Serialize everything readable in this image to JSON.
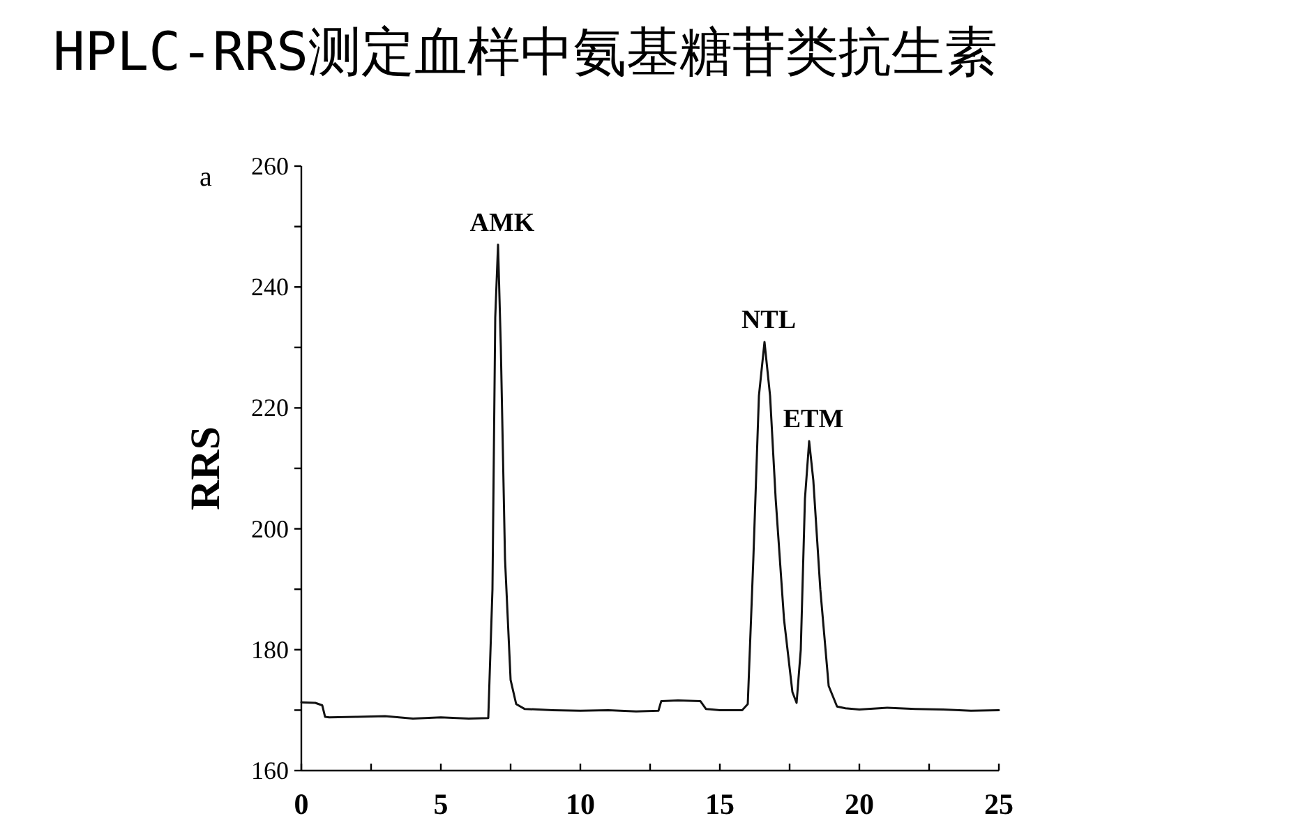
{
  "chart_data": {
    "type": "line",
    "title": "HPLC-RRS测定血样中氨基糖苷类抗生素",
    "ylabel": "RRS",
    "annotations": [
      "a",
      {
        "text": "AMK",
        "x": 7.05,
        "y": 247
      },
      {
        "text": "NTL",
        "x": 16.6,
        "y": 230.9
      },
      {
        "text": "ETM",
        "x": 18.2,
        "y": 214.5
      }
    ],
    "series": [
      {
        "color": "#111111",
        "x": [
          0,
          0.5,
          0.75,
          0.85,
          1.0,
          2.0,
          3.0,
          4.0,
          5.0,
          6.0,
          6.7,
          6.85,
          6.95,
          7.05,
          7.15,
          7.3,
          7.5,
          7.7,
          8.0,
          9.0,
          10.0,
          11.0,
          12.0,
          12.8,
          12.9,
          13.5,
          14.3,
          14.5,
          15.0,
          15.8,
          16.0,
          16.2,
          16.4,
          16.6,
          16.8,
          17.0,
          17.3,
          17.6,
          17.75,
          17.9,
          18.05,
          18.2,
          18.35,
          18.6,
          18.9,
          19.2,
          19.5,
          20.0,
          21.0,
          22.0,
          23.0,
          24.0,
          25.0
        ],
        "values": [
          171.3,
          171.2,
          170.8,
          168.9,
          168.8,
          168.9,
          169.0,
          168.6,
          168.8,
          168.6,
          168.7,
          190,
          235,
          247,
          230,
          195,
          175,
          171,
          170.2,
          170.0,
          169.9,
          170.0,
          169.8,
          169.9,
          171.5,
          171.6,
          171.5,
          170.2,
          170.0,
          170.0,
          171.0,
          195,
          222,
          230.9,
          222,
          205,
          185,
          173,
          171.2,
          180,
          205,
          214.5,
          208,
          190,
          174,
          170.6,
          170.3,
          170.1,
          170.4,
          170.2,
          170.1,
          169.9,
          170.0
        ]
      }
    ],
    "xlim": [
      0,
      25
    ],
    "ylim": [
      160,
      260
    ],
    "xticks": [
      0,
      {
        "value": 2.5,
        "label": null
      },
      5,
      {
        "value": 7.5,
        "label": null
      },
      10,
      {
        "value": 12.5,
        "label": null
      },
      15,
      {
        "value": 17.5,
        "label": null
      },
      20,
      {
        "value": 22.5,
        "label": null
      },
      25
    ],
    "yticks": [
      160,
      {
        "value": 170,
        "label": null
      },
      180,
      {
        "value": 190,
        "label": null
      },
      200,
      {
        "value": 210,
        "label": null
      },
      220,
      {
        "value": 230,
        "label": null
      },
      240,
      {
        "value": 250,
        "label": null
      },
      260
    ],
    "grid": false,
    "marker": "none",
    "line_style": "solid"
  }
}
